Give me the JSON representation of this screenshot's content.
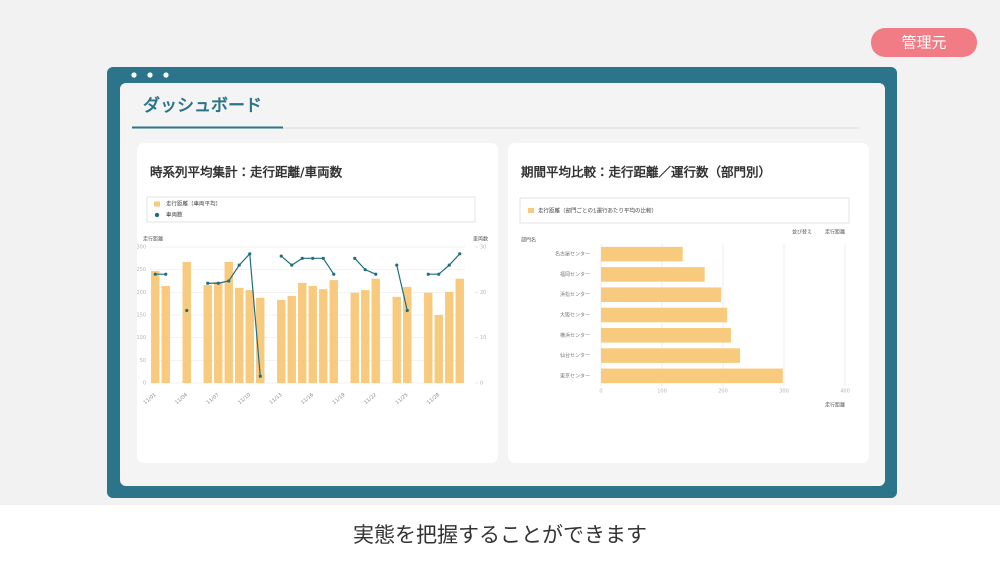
{
  "badge": "管理元",
  "dashboard_title": "ダッシュボード",
  "caption": "実態を把握することができます",
  "chart_data": [
    {
      "type": "bar",
      "title": "時系列平均集計：走行距離/車両数",
      "y_label": "走行距離",
      "y2_label": "車両数",
      "categories": [
        "11/01",
        null,
        null,
        "11/04",
        null,
        null,
        "11/07",
        null,
        null,
        "11/10",
        null,
        null,
        "11/13",
        null,
        null,
        "11/16",
        null,
        null,
        "11/19",
        null,
        null,
        "11/22",
        null,
        null,
        "11/25",
        null,
        null,
        "11/28",
        null,
        null
      ],
      "series": [
        {
          "name": "走行距離（車両平均）",
          "color": "#f8ca7e",
          "values": [
            247,
            214,
            null,
            267,
            null,
            216,
            223,
            267,
            210,
            205,
            188,
            null,
            183,
            192,
            221,
            214,
            207,
            227,
            null,
            199,
            205,
            230,
            null,
            190,
            212,
            null,
            199,
            150,
            201,
            230
          ]
        },
        {
          "name": "車両数",
          "type": "line",
          "axis": "y2",
          "color": "#1f6f80",
          "values": [
            24,
            24,
            null,
            16,
            null,
            22,
            22,
            22.5,
            26,
            28.5,
            1.5,
            null,
            28,
            26,
            27.5,
            27.5,
            27.5,
            24,
            null,
            27.5,
            25,
            24,
            null,
            26,
            16,
            null,
            24,
            24,
            26,
            28.5
          ]
        }
      ],
      "ylim": [
        0,
        300
      ],
      "yticks": [
        0,
        50,
        100,
        150,
        200,
        250,
        300
      ],
      "y2lim": [
        0,
        30
      ],
      "y2ticks": [
        0,
        10,
        20,
        30
      ],
      "grid": true
    },
    {
      "type": "hbar",
      "title": "期間平均比較：走行距離／運行数（部門別）",
      "legend": "走行距離（部門ごとの1運行あたり平均の比較）",
      "y_label": "部門名",
      "x_label": "走行距離",
      "annotations": [
        "並び替え",
        "走行距離"
      ],
      "categories": [
        "名古屋センター",
        "福岡センター",
        "浜松センター",
        "大阪センター",
        "横浜センター",
        "仙台センター",
        "東京センター"
      ],
      "values": [
        134,
        170,
        197,
        207,
        213,
        228,
        298
      ],
      "color": "#f8ca7e",
      "xlim": [
        0,
        400
      ],
      "xticks": [
        0,
        100,
        200,
        300,
        400
      ],
      "grid": true
    }
  ]
}
